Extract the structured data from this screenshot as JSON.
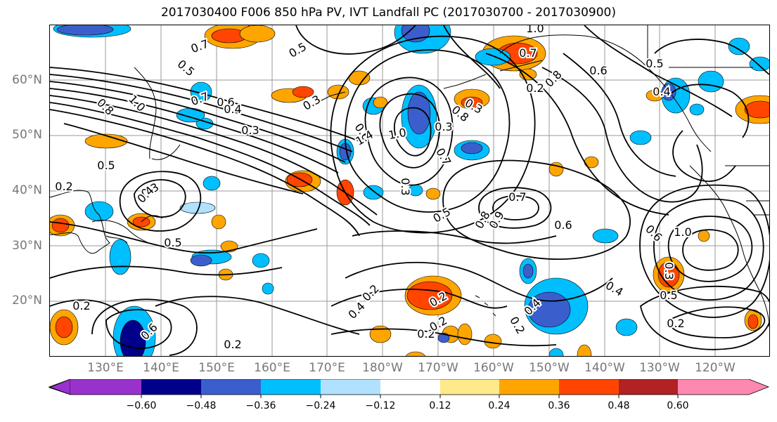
{
  "title": "2017030400 F006 850 hPa PV, IVT Landfall PC (2017030700 - 2017030900)",
  "lat_labels": [
    "60°N",
    "50°N",
    "40°N",
    "30°N",
    "20°N"
  ],
  "lon_labels": [
    "130°E",
    "140°E",
    "150°E",
    "160°E",
    "170°E",
    "180°W",
    "170°W",
    "160°W",
    "150°W",
    "140°W",
    "130°W",
    "120°W"
  ],
  "colorbar": {
    "ticks": [
      "−0.60",
      "−0.48",
      "−0.36",
      "−0.24",
      "−0.12",
      "0.12",
      "0.24",
      "0.36",
      "0.48",
      "0.60"
    ],
    "colors": [
      "#9932cc",
      "#00008b",
      "#3a5fcd",
      "#00bfff",
      "#b0e2ff",
      "#ffffff",
      "#ffe98a",
      "#ffa500",
      "#ff4500",
      "#b22222",
      "#ff88b0"
    ]
  },
  "contour_labels": [
    "0.7",
    "0.5",
    "0.5",
    "1.0",
    "0.8",
    "0.7",
    "0.6",
    "0.5",
    "0.4",
    "0.3",
    "1.0",
    "0.7",
    "0.6",
    "0.4",
    "0.3",
    "0.3",
    "0.6",
    "1.4",
    "1.0",
    "0.3",
    "0.8",
    "0.5",
    "0.3",
    "0.7",
    "0.8",
    "0.2",
    "0.3",
    "0.5",
    "0.7",
    "0.8",
    "0.9",
    "0.2",
    "0.4",
    "0.6",
    "1.0",
    "0.3",
    "0.5",
    "0.6",
    "0.2",
    "0.2",
    "0.4",
    "0.2",
    "0.2",
    "0.2",
    "0.2",
    "0.2",
    "0.4",
    "0.6",
    "0.4",
    "0.5",
    "0.2"
  ]
}
